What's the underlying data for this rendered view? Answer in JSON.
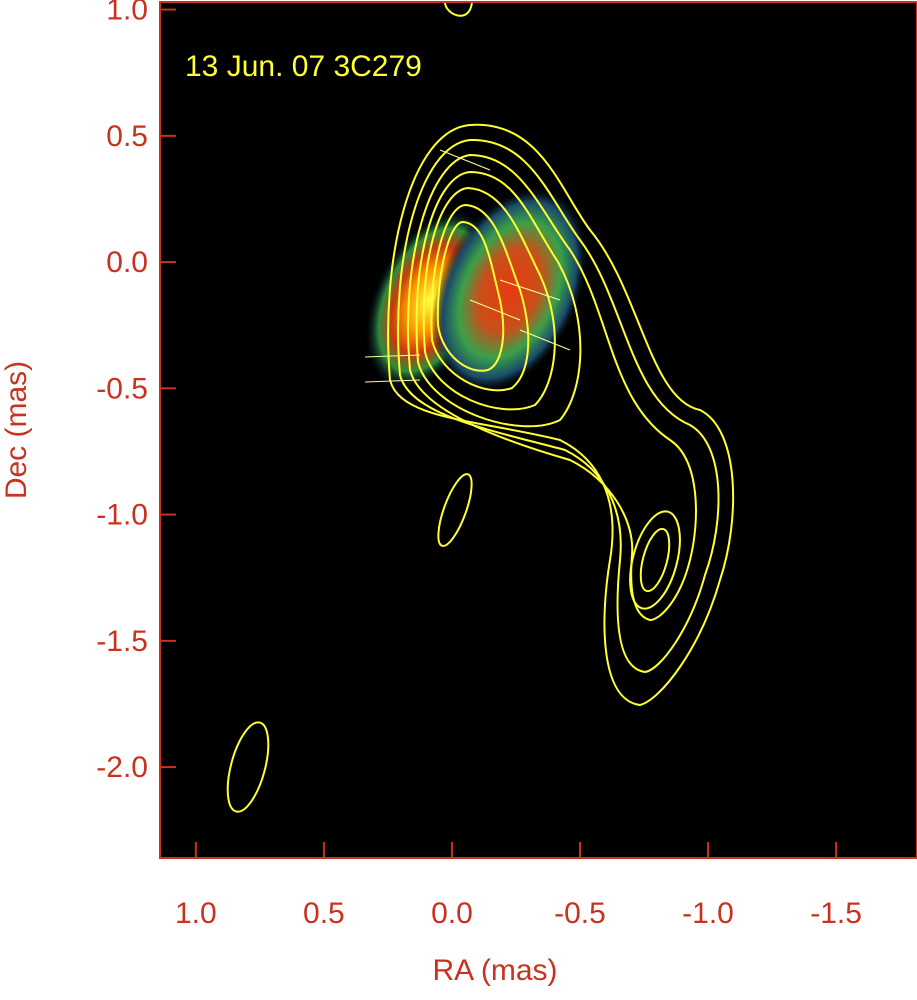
{
  "chart_data": {
    "type": "map",
    "title": "13 Jun. 07  3C279",
    "x_label": "RA (mas)",
    "y_label": "Dec (mas)",
    "xlim": [
      1.14,
      -1.816
    ],
    "ylim": [
      -2.36,
      1.03
    ],
    "xticks": [
      {
        "value": 1,
        "label": "1.0"
      },
      0.5,
      {
        "value": 0,
        "label": "0.0"
      },
      -0.5,
      {
        "value": -1,
        "label": "-1.0"
      },
      -1.5
    ],
    "yticks": [
      {
        "value": 1,
        "label": "1.0"
      },
      0.5,
      {
        "value": 0,
        "label": "0.0"
      },
      -0.5,
      {
        "value": -1,
        "label": "-1.0"
      },
      -1.5,
      {
        "value": -2,
        "label": "-2.0"
      }
    ],
    "axis_color": "#c8321e",
    "contour_color": "#ffff33"
  }
}
